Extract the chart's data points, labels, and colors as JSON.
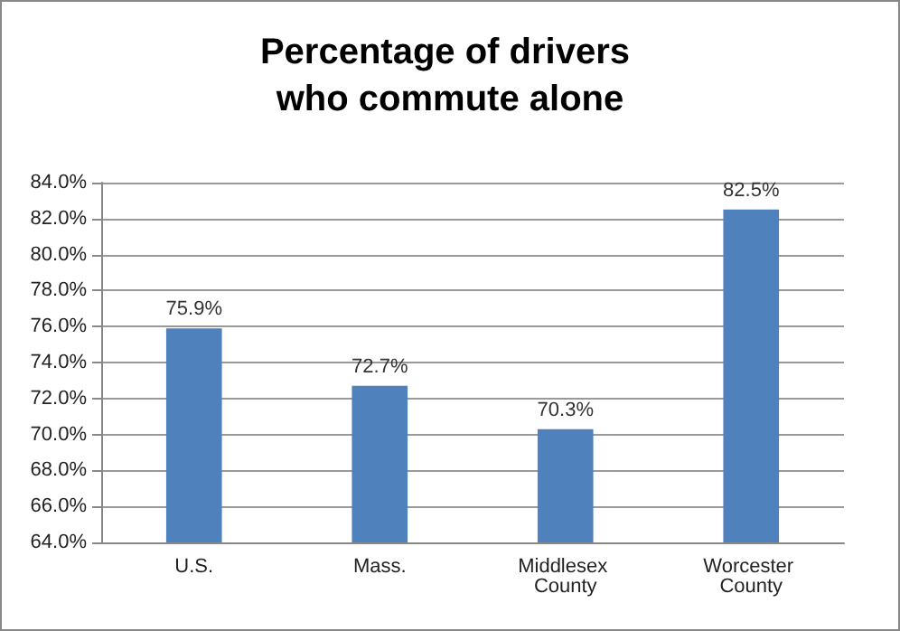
{
  "chart_data": {
    "type": "bar",
    "title": "Percentage of drivers who commute alone",
    "categories": [
      "U.S.",
      "Mass.",
      "Middlesex County",
      "Worcester County"
    ],
    "values": [
      75.9,
      72.7,
      70.3,
      82.5
    ],
    "value_labels": [
      "75.9%",
      "72.7%",
      "70.3%",
      "82.5%"
    ],
    "color": "#4f81bd",
    "ylim": [
      64,
      84
    ],
    "yticks": [
      {
        "value": 64,
        "label": "64.0%"
      },
      {
        "value": 66,
        "label": "66.0%"
      },
      {
        "value": 68,
        "label": "68.0%"
      },
      {
        "value": 70,
        "label": "70.0%"
      },
      {
        "value": 72,
        "label": "72.0%"
      },
      {
        "value": 74,
        "label": "74.0%"
      },
      {
        "value": 76,
        "label": "76.0%"
      },
      {
        "value": 78,
        "label": "78.0%"
      },
      {
        "value": 80,
        "label": "80.0%"
      },
      {
        "value": 82,
        "label": "82.0%"
      },
      {
        "value": 84,
        "label": "84.0%"
      }
    ],
    "grid": "y"
  }
}
